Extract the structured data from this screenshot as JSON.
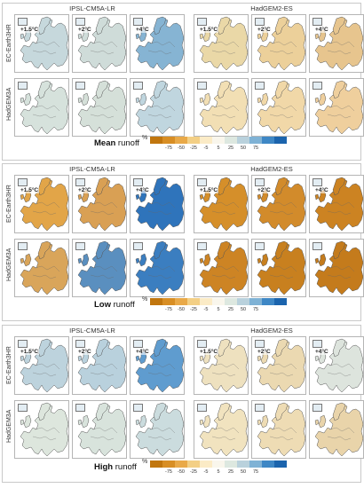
{
  "gcm_labels": [
    "IPSL-CM5A-LR",
    "HadGEM2-ES"
  ],
  "rcm_labels": [
    "EC-Earth3HR",
    "HadGEM3A"
  ],
  "warming_levels": [
    "+1.5°C",
    "+2°C",
    "+4°C"
  ],
  "units": "%",
  "colorbar": {
    "ticks": [
      "-75",
      "-50",
      "-25",
      "-5",
      "5",
      "25",
      "50",
      "75"
    ],
    "colors": [
      "#c1760e",
      "#d88e24",
      "#e9a948",
      "#f3cf85",
      "#fbebc6",
      "#f9f6ec",
      "#dde8e0",
      "#b9d1dc",
      "#7fb2d5",
      "#3e87c5",
      "#1b64ad"
    ]
  },
  "panels": [
    {
      "title_bold": "Mean",
      "title_rest": " runoff",
      "fills": [
        [
          "#c6d8dc",
          "#cfdcd9",
          "#86b4d3"
        ],
        [
          "#ead8a7",
          "#ecd09a",
          "#e7c58e"
        ],
        [
          "#d6e2dc",
          "#d5e0d9",
          "#c0d6df"
        ],
        [
          "#f2dfb4",
          "#f1d8a8",
          "#efcf9d"
        ]
      ]
    },
    {
      "title_bold": "Low",
      "title_rest": " runoff",
      "fills": [
        [
          "#e2a548",
          "#d9a054",
          "#2f74bb"
        ],
        [
          "#d58f2a",
          "#d28b2b",
          "#cc8322"
        ],
        [
          "#d9a55a",
          "#5a8fbf",
          "#3b7ec0"
        ],
        [
          "#cd8424",
          "#c8801f",
          "#c47b1c"
        ]
      ]
    },
    {
      "title_bold": "High",
      "title_rest": " runoff",
      "fills": [
        [
          "#bdd3dd",
          "#b9d1dd",
          "#5f9ccf"
        ],
        [
          "#eee1bf",
          "#ebd9b1",
          "#dde4dd"
        ],
        [
          "#dde6dd",
          "#d8e3dc",
          "#cbdcde"
        ],
        [
          "#f1e3bf",
          "#eedcb4",
          "#e9d4aa"
        ]
      ]
    }
  ]
}
